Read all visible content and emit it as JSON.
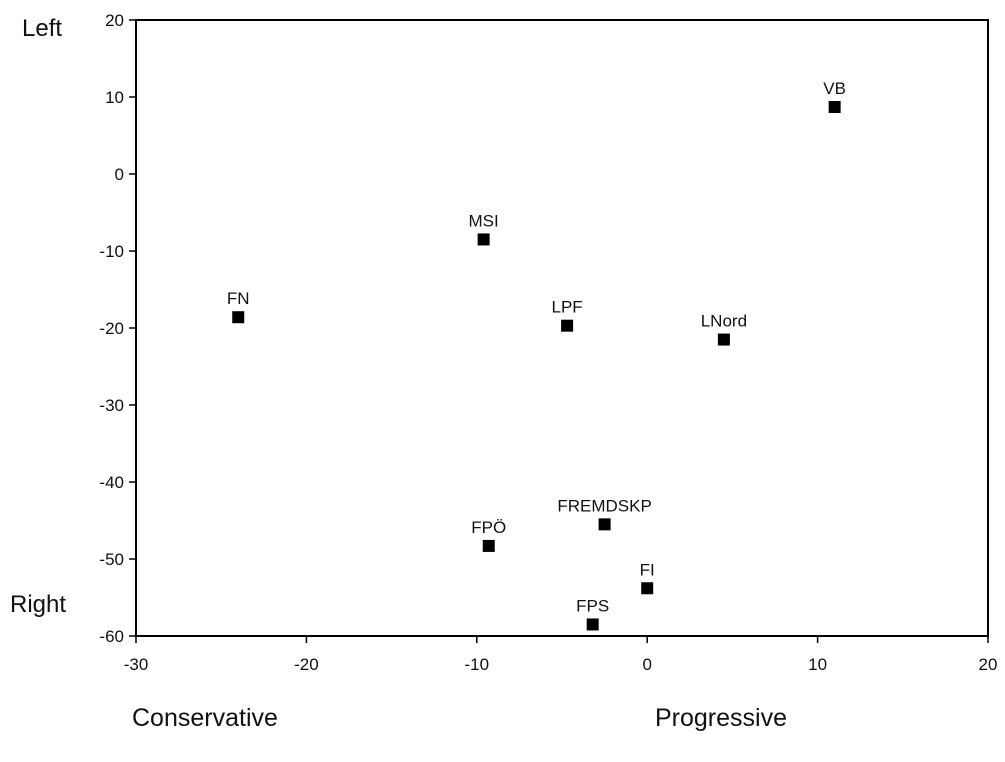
{
  "chart_data": {
    "type": "scatter",
    "title": "",
    "xlabel": "",
    "ylabel": "",
    "xlim": [
      -30,
      20
    ],
    "ylim": [
      -60,
      20
    ],
    "x_ticks": [
      -30,
      -20,
      -10,
      0,
      10,
      20
    ],
    "y_ticks": [
      20,
      10,
      0,
      -10,
      -20,
      -30,
      -40,
      -50,
      -60
    ],
    "y_top_label": "Left",
    "y_bottom_label": "Right",
    "x_left_label": "Conservative",
    "x_right_label": "Progressive",
    "grid": false,
    "marker_color": "#000000",
    "points": [
      {
        "label": "VB",
        "x": 11.0,
        "y": 8.7
      },
      {
        "label": "MSI",
        "x": -9.6,
        "y": -8.5
      },
      {
        "label": "FN",
        "x": -24.0,
        "y": -18.6
      },
      {
        "label": "LPF",
        "x": -4.7,
        "y": -19.7
      },
      {
        "label": "LNord",
        "x": 4.5,
        "y": -21.5
      },
      {
        "label": "FREMDSKP",
        "x": -2.5,
        "y": -45.5
      },
      {
        "label": "FPÖ",
        "x": -9.3,
        "y": -48.3
      },
      {
        "label": "FI",
        "x": 0.0,
        "y": -53.8
      },
      {
        "label": "FPS",
        "x": -3.2,
        "y": -58.5
      }
    ]
  }
}
